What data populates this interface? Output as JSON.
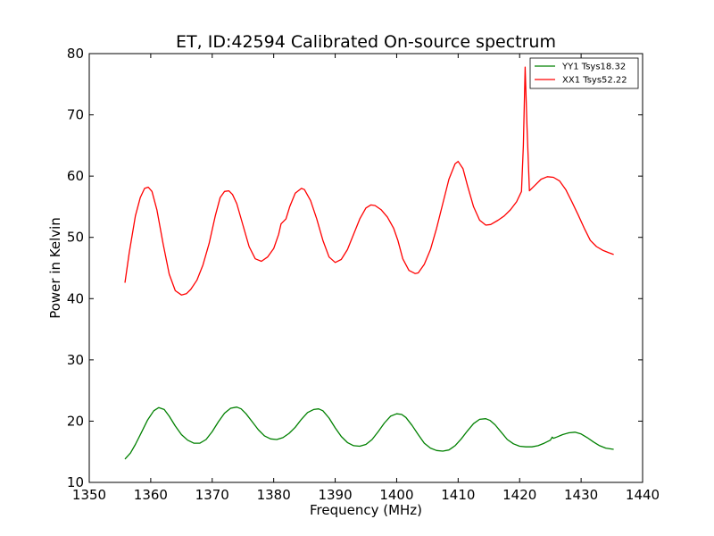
{
  "chart_data": {
    "type": "line",
    "title": "ET, ID:42594 Calibrated On-source spectrum",
    "xlabel": "Frequency (MHz)",
    "ylabel": "Power in Kelvin",
    "xlim": [
      1350,
      1440
    ],
    "ylim": [
      10,
      80
    ],
    "xticks": [
      "1350",
      "1360",
      "1370",
      "1380",
      "1390",
      "1400",
      "1410",
      "1420",
      "1430",
      "1440"
    ],
    "yticks": [
      "10",
      "20",
      "30",
      "40",
      "50",
      "60",
      "70",
      "80"
    ],
    "grid": false,
    "legend_position": "top-right",
    "series": [
      {
        "name": "YY1 Tsys18.32",
        "color": "#008000",
        "x": [
          1355.8,
          1356.7,
          1357.5,
          1358.5,
          1359.5,
          1360.5,
          1361.3,
          1362.2,
          1363.0,
          1364.0,
          1365.0,
          1366.0,
          1367.0,
          1368.0,
          1369.0,
          1370.0,
          1371.0,
          1372.0,
          1373.0,
          1374.0,
          1374.7,
          1375.5,
          1376.5,
          1377.5,
          1378.5,
          1379.5,
          1380.5,
          1381.5,
          1382.5,
          1383.5,
          1384.5,
          1385.5,
          1386.5,
          1387.3,
          1388.0,
          1389.0,
          1390.0,
          1391.0,
          1392.0,
          1393.0,
          1394.0,
          1395.0,
          1396.0,
          1397.0,
          1398.0,
          1399.0,
          1400.0,
          1400.8,
          1401.5,
          1402.5,
          1403.5,
          1404.5,
          1405.5,
          1406.5,
          1407.5,
          1408.5,
          1409.5,
          1410.5,
          1411.5,
          1412.5,
          1413.5,
          1414.5,
          1415.2,
          1416.0,
          1417.0,
          1418.0,
          1419.0,
          1420.0,
          1421.0,
          1422.0,
          1423.0,
          1424.0,
          1425.0,
          1425.3,
          1425.5,
          1426.0,
          1427.0,
          1428.0,
          1429.0,
          1430.0,
          1431.0,
          1432.0,
          1433.0,
          1434.0,
          1435.3
        ],
        "y": [
          13.8,
          14.8,
          16.2,
          18.2,
          20.2,
          21.7,
          22.2,
          21.9,
          20.8,
          19.2,
          17.8,
          16.9,
          16.4,
          16.4,
          17.0,
          18.3,
          19.9,
          21.3,
          22.1,
          22.3,
          22.0,
          21.2,
          19.9,
          18.6,
          17.6,
          17.1,
          17.0,
          17.3,
          18.0,
          19.0,
          20.3,
          21.4,
          21.9,
          22.0,
          21.7,
          20.5,
          18.9,
          17.5,
          16.5,
          16.0,
          15.9,
          16.2,
          17.0,
          18.3,
          19.7,
          20.8,
          21.2,
          21.1,
          20.6,
          19.3,
          17.8,
          16.4,
          15.6,
          15.2,
          15.1,
          15.3,
          16.0,
          17.1,
          18.4,
          19.6,
          20.3,
          20.4,
          20.1,
          19.4,
          18.2,
          17.0,
          16.3,
          15.9,
          15.8,
          15.8,
          16.0,
          16.4,
          16.9,
          17.4,
          17.2,
          17.4,
          17.8,
          18.1,
          18.2,
          17.9,
          17.3,
          16.6,
          16.0,
          15.6,
          15.4
        ]
      },
      {
        "name": "XX1 Tsys52.22",
        "color": "#ff0000",
        "x": [
          1355.8,
          1356.5,
          1357.5,
          1358.3,
          1359.0,
          1359.6,
          1360.2,
          1361.0,
          1362.0,
          1363.0,
          1364.0,
          1365.0,
          1365.8,
          1366.5,
          1367.5,
          1368.5,
          1369.5,
          1370.5,
          1371.3,
          1372.0,
          1372.7,
          1373.3,
          1374.0,
          1375.0,
          1376.0,
          1377.0,
          1378.0,
          1379.0,
          1380.0,
          1380.8,
          1381.2,
          1382.0,
          1382.6,
          1383.5,
          1384.5,
          1385.0,
          1386.0,
          1387.0,
          1388.0,
          1389.0,
          1390.0,
          1391.0,
          1392.0,
          1393.0,
          1394.0,
          1395.0,
          1395.8,
          1396.5,
          1397.5,
          1398.5,
          1399.5,
          1400.2,
          1401.0,
          1402.0,
          1403.0,
          1403.5,
          1404.5,
          1405.5,
          1406.5,
          1407.5,
          1408.5,
          1409.5,
          1410.0,
          1410.8,
          1411.5,
          1412.5,
          1413.5,
          1414.5,
          1415.3,
          1416.5,
          1417.5,
          1418.5,
          1419.5,
          1420.3,
          1420.6,
          1420.9,
          1421.2,
          1421.6,
          1422.5,
          1423.5,
          1424.5,
          1425.5,
          1426.5,
          1427.5,
          1428.5,
          1429.5,
          1430.5,
          1431.5,
          1432.5,
          1433.5,
          1434.5,
          1435.3
        ],
        "y": [
          42.6,
          47.5,
          53.5,
          56.5,
          58.0,
          58.2,
          57.5,
          54.5,
          49.0,
          44.0,
          41.3,
          40.6,
          40.8,
          41.5,
          43.0,
          45.5,
          49.0,
          53.5,
          56.5,
          57.5,
          57.6,
          57.0,
          55.5,
          52.0,
          48.5,
          46.5,
          46.1,
          46.8,
          48.2,
          50.5,
          52.2,
          53.0,
          55.0,
          57.2,
          58.0,
          57.8,
          56.0,
          53.0,
          49.5,
          46.8,
          45.9,
          46.4,
          48.0,
          50.5,
          53.0,
          54.8,
          55.3,
          55.2,
          54.5,
          53.3,
          51.5,
          49.5,
          46.5,
          44.6,
          44.1,
          44.2,
          45.6,
          48.0,
          51.5,
          55.5,
          59.5,
          62.0,
          62.4,
          61.2,
          58.5,
          55.0,
          52.8,
          52.0,
          52.1,
          52.8,
          53.5,
          54.5,
          55.8,
          57.5,
          65.0,
          77.8,
          68.0,
          57.6,
          58.5,
          59.5,
          59.9,
          59.8,
          59.2,
          57.8,
          55.8,
          53.7,
          51.5,
          49.5,
          48.5,
          47.9,
          47.5,
          47.2
        ]
      }
    ]
  }
}
